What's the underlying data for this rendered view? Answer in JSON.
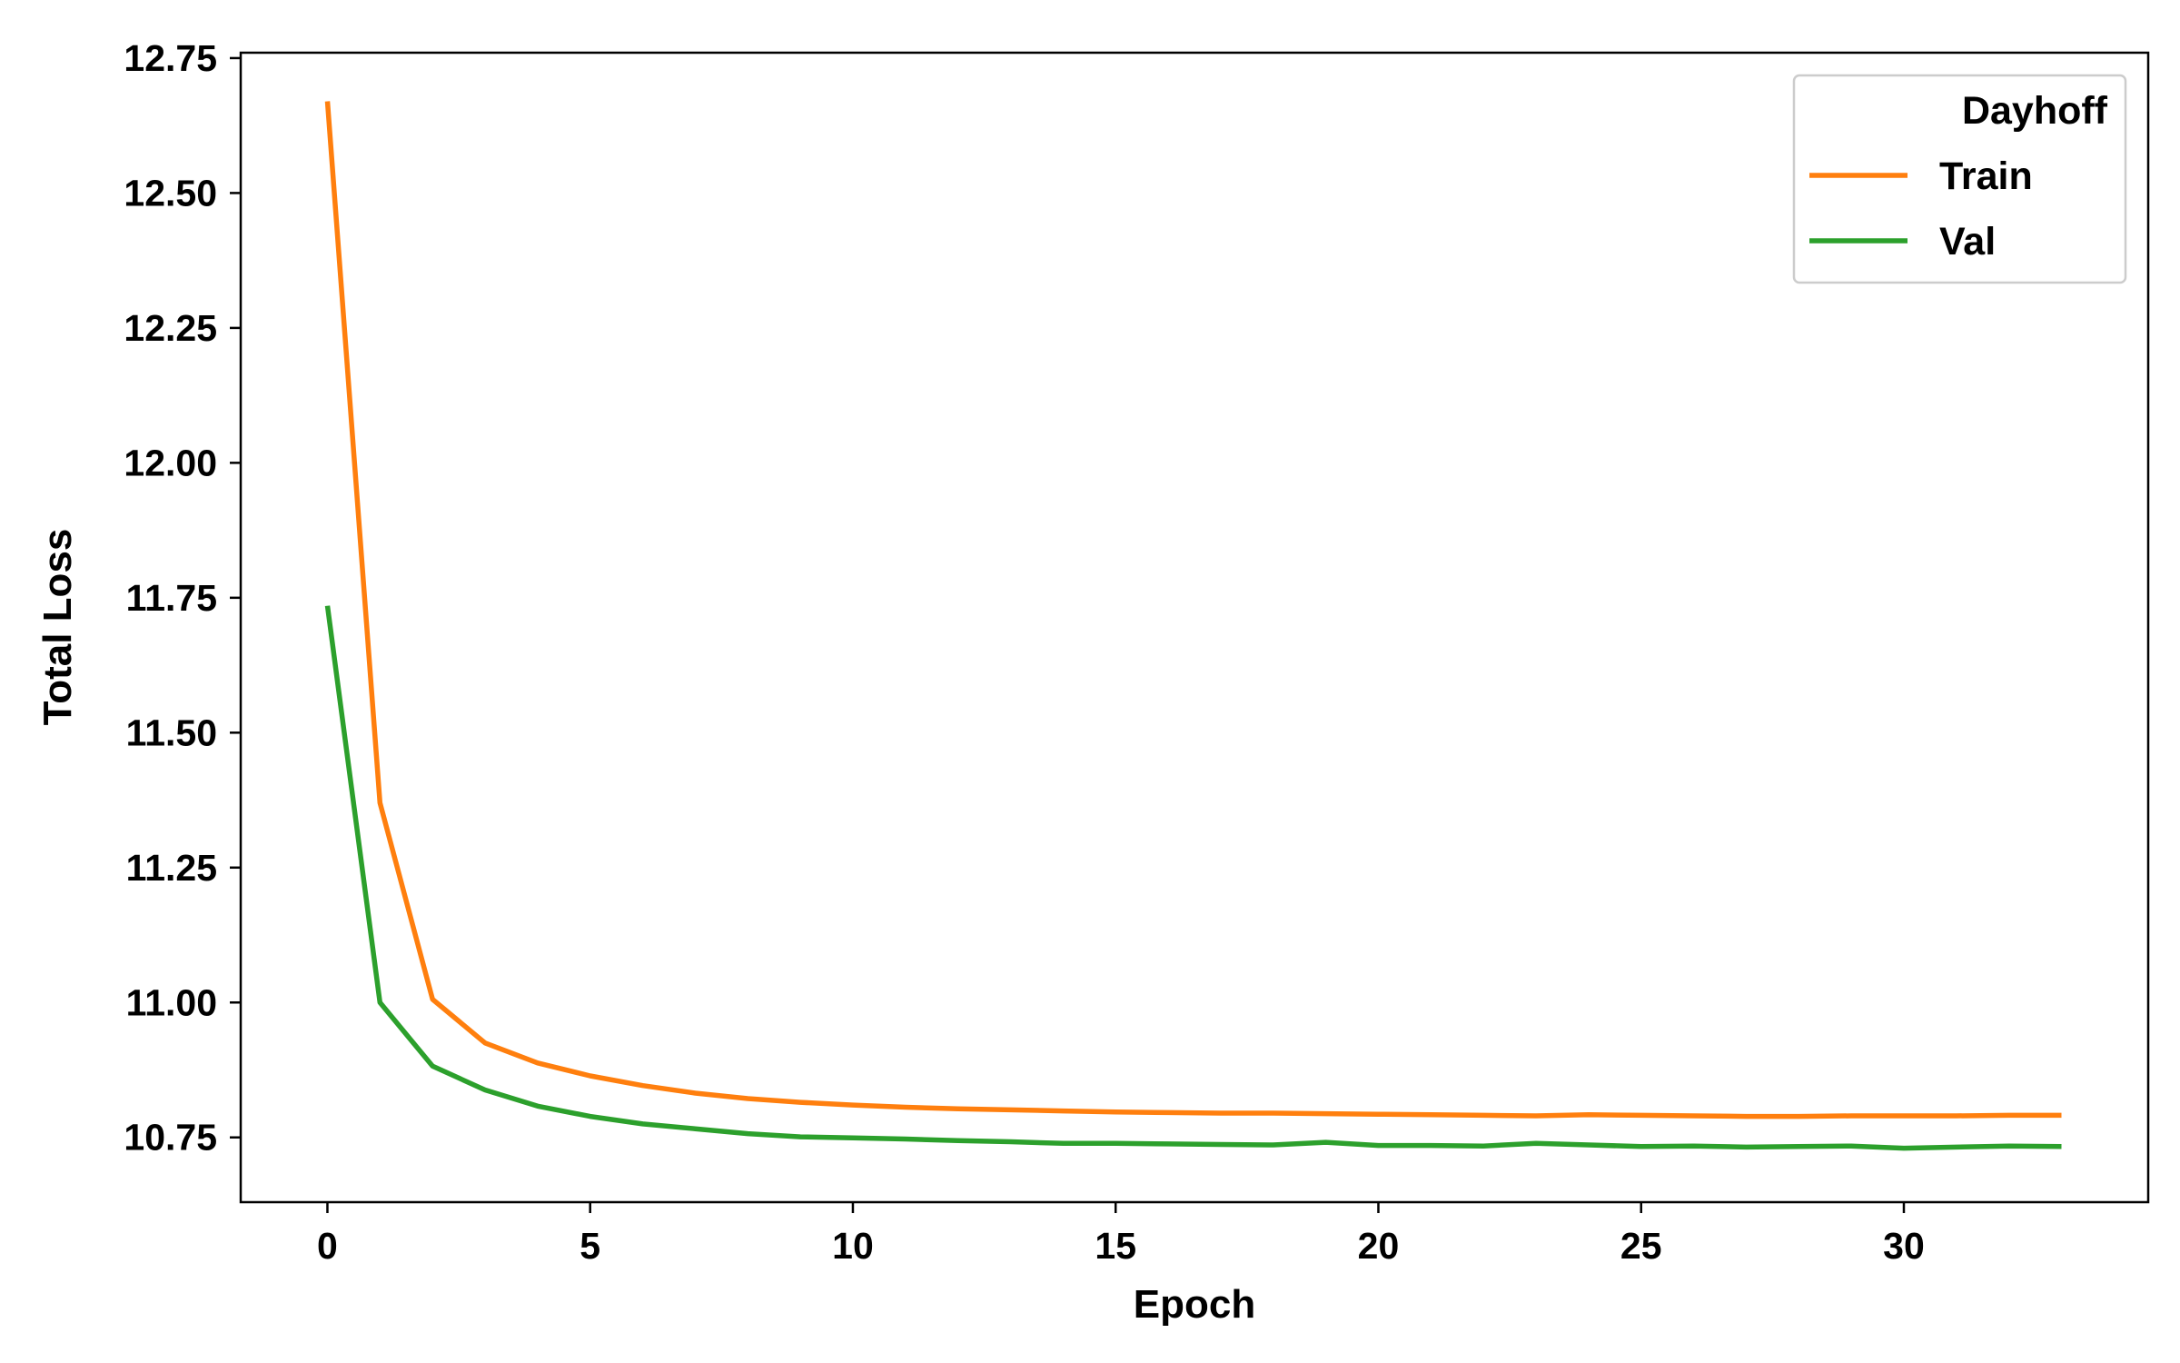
{
  "chart_data": {
    "type": "line",
    "xlabel": "Epoch",
    "ylabel": "Total Loss",
    "xlim": [
      -1.65,
      34.65
    ],
    "ylim": [
      10.63,
      12.76
    ],
    "x_ticks": [
      0,
      5,
      10,
      15,
      20,
      25,
      30
    ],
    "y_ticks": [
      10.75,
      11.0,
      11.25,
      11.5,
      11.75,
      12.0,
      12.25,
      12.5,
      12.75
    ],
    "legend": {
      "title": "Dayhoff",
      "position": "top-right"
    },
    "x": [
      0,
      1,
      2,
      3,
      4,
      5,
      6,
      7,
      8,
      9,
      10,
      11,
      12,
      13,
      14,
      15,
      16,
      17,
      18,
      19,
      20,
      21,
      22,
      23,
      24,
      25,
      26,
      27,
      28,
      29,
      30,
      31,
      32,
      33
    ],
    "series": [
      {
        "name": "Train",
        "color": "#ff7f0e",
        "values": [
          12.67,
          11.37,
          11.006,
          10.925,
          10.888,
          10.864,
          10.846,
          10.832,
          10.822,
          10.815,
          10.81,
          10.806,
          10.803,
          10.801,
          10.799,
          10.797,
          10.796,
          10.795,
          10.795,
          10.794,
          10.793,
          10.792,
          10.791,
          10.79,
          10.792,
          10.791,
          10.79,
          10.789,
          10.789,
          10.79,
          10.79,
          10.79,
          10.791,
          10.791
        ]
      },
      {
        "name": "Val",
        "color": "#2ca02c",
        "values": [
          11.735,
          11.0,
          10.882,
          10.838,
          10.808,
          10.789,
          10.775,
          10.766,
          10.757,
          10.751,
          10.749,
          10.747,
          10.744,
          10.742,
          10.739,
          10.739,
          10.738,
          10.737,
          10.736,
          10.741,
          10.735,
          10.735,
          10.734,
          10.739,
          10.736,
          10.733,
          10.734,
          10.732,
          10.733,
          10.734,
          10.73,
          10.732,
          10.734,
          10.733
        ]
      }
    ]
  }
}
